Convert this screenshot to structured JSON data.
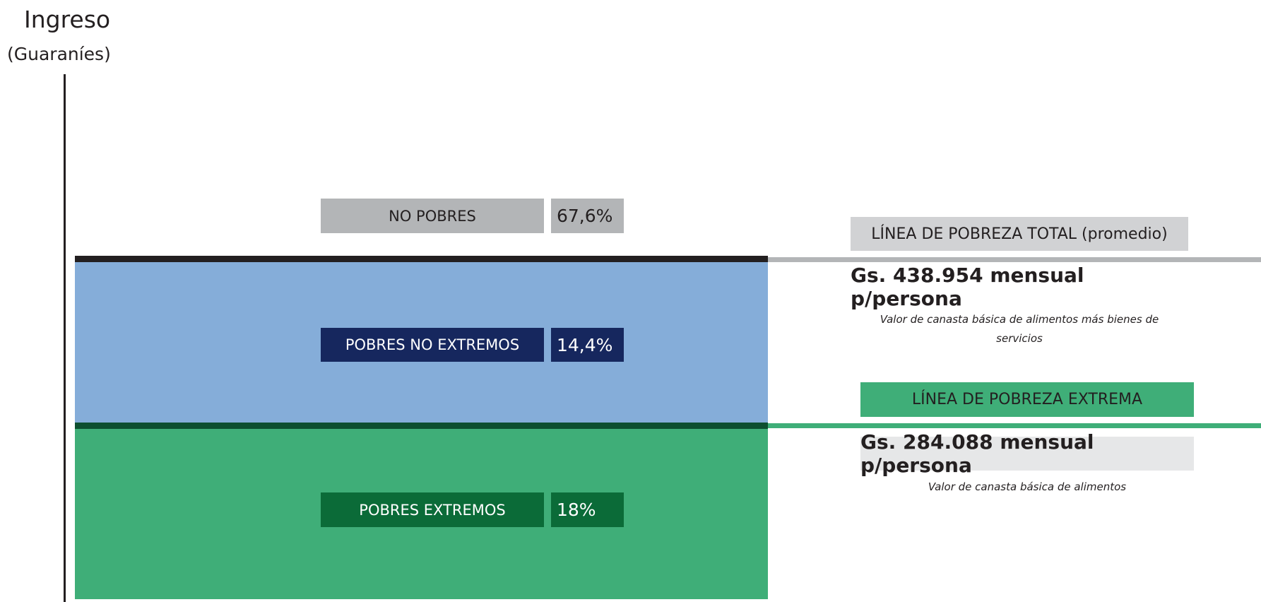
{
  "axis": {
    "title": "Ingreso",
    "subtitle": "(Guaraníes)"
  },
  "groups": [
    {
      "label": "NO POBRES",
      "value": "67,6%"
    },
    {
      "label": "POBRES NO EXTREMOS",
      "value": "14,4%"
    },
    {
      "label": "POBRES EXTREMOS",
      "value": "18%"
    }
  ],
  "lines": [
    {
      "label": "LÍNEA DE POBREZA TOTAL (promedio)",
      "amount": "Gs. 438.954 mensual p/persona",
      "note": "Valor de canasta básica de alimentos más bienes de servicios"
    },
    {
      "label": "LÍNEA DE POBREZA EXTREMA",
      "amount": "Gs. 284.088 mensual p/persona",
      "note": "Valor de canasta básica de alimentos"
    }
  ]
}
